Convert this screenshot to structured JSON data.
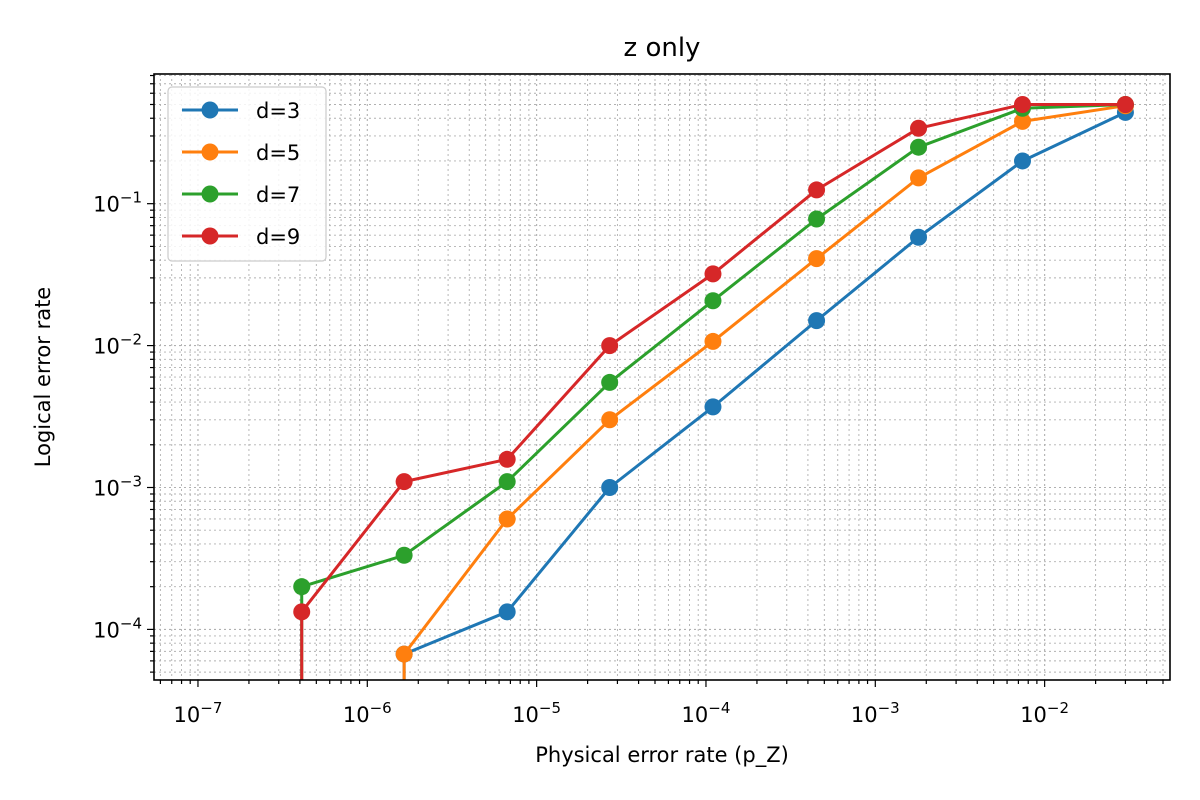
{
  "chart_data": {
    "type": "line",
    "title": "z only",
    "xlabel": "Physical error rate (p_Z)",
    "ylabel": "Logical error rate",
    "xscale": "log",
    "yscale": "log",
    "xlim": [
      5.5e-08,
      0.055
    ],
    "ylim": [
      4.4e-05,
      0.82
    ],
    "x_ticks": [
      {
        "value": 1e-07,
        "base": "10",
        "exp": "−7"
      },
      {
        "value": 1e-06,
        "base": "10",
        "exp": "−6"
      },
      {
        "value": 1e-05,
        "base": "10",
        "exp": "−5"
      },
      {
        "value": 0.0001,
        "base": "10",
        "exp": "−4"
      },
      {
        "value": 0.001,
        "base": "10",
        "exp": "−3"
      },
      {
        "value": 0.01,
        "base": "10",
        "exp": "−2"
      }
    ],
    "y_ticks": [
      {
        "value": 0.0001,
        "base": "10",
        "exp": "−4"
      },
      {
        "value": 0.001,
        "base": "10",
        "exp": "−3"
      },
      {
        "value": 0.01,
        "base": "10",
        "exp": "−2"
      },
      {
        "value": 0.1,
        "base": "10",
        "exp": "−1"
      }
    ],
    "grid": "major and minor, dotted",
    "legend": "upper-left",
    "x": [
      4.1e-07,
      1.65e-06,
      6.7e-06,
      2.7e-05,
      0.00011,
      0.00045,
      0.0018,
      0.0074,
      0.03
    ],
    "series": [
      {
        "name": "d=3",
        "color": "#1f77b4",
        "values": [
          null,
          6.7e-05,
          0.000133,
          0.001,
          0.0037,
          0.015,
          0.058,
          0.2,
          0.44
        ]
      },
      {
        "name": "d=5",
        "color": "#ff7f0e",
        "values": [
          null,
          6.7e-05,
          0.0006,
          0.003,
          0.0107,
          0.041,
          0.152,
          0.38,
          0.49
        ]
      },
      {
        "name": "d=7",
        "color": "#2ca02c",
        "values": [
          0.0002,
          0.000333,
          0.0011,
          0.0055,
          0.0207,
          0.078,
          0.25,
          0.47,
          0.5
        ]
      },
      {
        "name": "d=9",
        "color": "#d62728",
        "values": [
          0.000133,
          0.0011,
          0.00158,
          0.01,
          0.032,
          0.125,
          0.34,
          0.5,
          0.5
        ]
      }
    ]
  }
}
